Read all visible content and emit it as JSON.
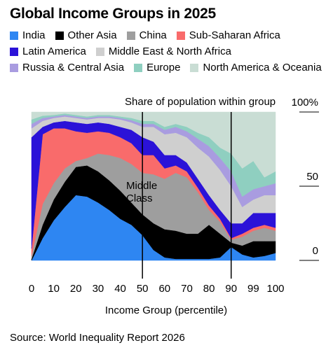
{
  "chart_data": {
    "type": "stacked_area",
    "title": "Global Income Groups in 2025",
    "subtitle": "Share of population within group",
    "annotation": [
      "Middle",
      "Class"
    ],
    "x_label": "Income Group (percentile)",
    "source": "Source: World Inequality Report 2026",
    "categories": [
      "0",
      null,
      "10",
      null,
      "20",
      null,
      "30",
      null,
      "40",
      null,
      "50",
      null,
      "60",
      null,
      "70",
      null,
      "80",
      null,
      "90",
      null,
      "99",
      null,
      "100"
    ],
    "ylim": [
      0,
      100
    ],
    "yticks": [
      0,
      50,
      {
        "value": 100,
        "label": "100%"
      }
    ],
    "legend": "top",
    "series": [
      {
        "name": "India",
        "color": "#2e86f2",
        "values": [
          0,
          15,
          27,
          36,
          44,
          43,
          39,
          34,
          28,
          24,
          17,
          7,
          2,
          1,
          1,
          1,
          1,
          2,
          9,
          4,
          2,
          3,
          5
        ]
      },
      {
        "name": "Other Asia",
        "color": "#000000",
        "values": [
          1,
          9,
          14,
          17,
          19,
          21,
          21,
          20,
          19,
          15,
          14,
          18,
          19,
          19,
          17,
          17,
          23,
          16,
          3,
          6,
          11,
          10,
          8
        ]
      },
      {
        "name": "China",
        "color": "#9e9e9e",
        "values": [
          2,
          14,
          11,
          9,
          4,
          5,
          12,
          17,
          22,
          26,
          28,
          33,
          34,
          39,
          38,
          28,
          10,
          8,
          2,
          6,
          7,
          9,
          7
        ]
      },
      {
        "name": "Sub-Saharan Africa",
        "color": "#f96b6b",
        "values": [
          5,
          47,
          37,
          27,
          20,
          17,
          15,
          15,
          14,
          14,
          12,
          13,
          7,
          5,
          4,
          3,
          3,
          2,
          1,
          2,
          2,
          2,
          2
        ]
      },
      {
        "name": "Latin America",
        "color": "#2b12d8",
        "values": [
          75,
          5,
          4,
          5,
          6,
          6,
          6,
          6,
          7,
          9,
          12,
          9,
          9,
          7,
          6,
          6,
          7,
          6,
          10,
          7,
          10,
          8,
          10
        ]
      },
      {
        "name": "Middle East & North Africa",
        "color": "#cfcfcf",
        "values": [
          6,
          4,
          3,
          3,
          3,
          3,
          3,
          4,
          5,
          5,
          7,
          10,
          14,
          15,
          17,
          21,
          26,
          27,
          25,
          11,
          9,
          12,
          12
        ]
      },
      {
        "name": "Russia & Central Asia",
        "color": "#a99ce0",
        "values": [
          3,
          2,
          1,
          1,
          1,
          1,
          1,
          1,
          1,
          1.5,
          2,
          2,
          3,
          4,
          4,
          6,
          7,
          8,
          10,
          7,
          7,
          6,
          8
        ]
      },
      {
        "name": "Europe",
        "color": "#8fcfc0",
        "values": [
          3,
          1.5,
          1,
          1,
          1,
          1,
          1,
          1,
          1,
          1.5,
          2,
          2,
          2,
          2,
          3,
          4,
          6,
          7,
          12,
          19,
          19,
          6,
          8
        ]
      },
      {
        "name": "North America & Oceania",
        "color": "#c9ddd4",
        "values": [
          5,
          2.5,
          2,
          1,
          2,
          3,
          2,
          2,
          3,
          4,
          6,
          6,
          10,
          8,
          10,
          14,
          17,
          24,
          28,
          38,
          33,
          44,
          40
        ]
      }
    ]
  }
}
